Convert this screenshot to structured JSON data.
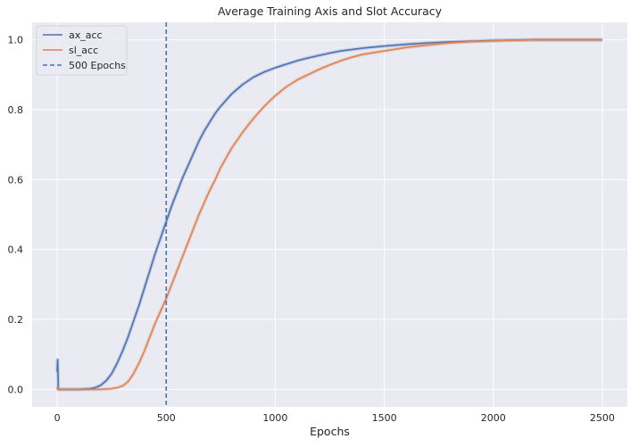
{
  "chart_data": {
    "type": "line",
    "title": "Average Training Axis and Slot Accuracy",
    "xlabel": "Epochs",
    "ylabel": "",
    "xlim": [
      -115,
      2615
    ],
    "ylim": [
      -0.05,
      1.05
    ],
    "xticks": [
      0,
      500,
      1000,
      1500,
      2000,
      2500
    ],
    "yticks": [
      0.0,
      0.2,
      0.4,
      0.6,
      0.8,
      1.0
    ],
    "xtick_labels": [
      "0",
      "500",
      "1000",
      "1500",
      "2000",
      "2500"
    ],
    "ytick_labels": [
      "0.0",
      "0.2",
      "0.4",
      "0.6",
      "0.8",
      "1.0"
    ],
    "grid": true,
    "legend_position": "top-left",
    "background": "#eaeaf2",
    "series": [
      {
        "name": "ax_acc",
        "color": "#4c72b0",
        "x": [
          0,
          2,
          5,
          25,
          100,
          150,
          175,
          200,
          225,
          250,
          275,
          300,
          325,
          350,
          375,
          400,
          425,
          450,
          475,
          500,
          525,
          550,
          575,
          600,
          625,
          650,
          675,
          700,
          725,
          750,
          800,
          850,
          900,
          950,
          1000,
          1050,
          1100,
          1150,
          1200,
          1250,
          1300,
          1350,
          1400,
          1450,
          1500,
          1600,
          1700,
          1800,
          1900,
          2000,
          2100,
          2200,
          2300,
          2400,
          2500
        ],
        "y": [
          0.05,
          0.085,
          0.0,
          0.0,
          0.0,
          0.002,
          0.005,
          0.012,
          0.025,
          0.045,
          0.075,
          0.11,
          0.15,
          0.195,
          0.24,
          0.29,
          0.34,
          0.39,
          0.435,
          0.48,
          0.525,
          0.565,
          0.605,
          0.64,
          0.675,
          0.71,
          0.74,
          0.765,
          0.79,
          0.81,
          0.845,
          0.872,
          0.893,
          0.908,
          0.92,
          0.93,
          0.94,
          0.948,
          0.955,
          0.962,
          0.968,
          0.972,
          0.976,
          0.979,
          0.982,
          0.987,
          0.991,
          0.994,
          0.996,
          0.998,
          0.999,
          1.0,
          1.0,
          1.0,
          1.0
        ]
      },
      {
        "name": "sl_acc",
        "color": "#dd8452",
        "x": [
          0,
          2,
          5,
          25,
          100,
          200,
          250,
          275,
          300,
          325,
          350,
          375,
          400,
          425,
          450,
          475,
          500,
          525,
          550,
          575,
          600,
          625,
          650,
          675,
          700,
          725,
          750,
          800,
          850,
          900,
          950,
          1000,
          1050,
          1100,
          1150,
          1200,
          1250,
          1300,
          1350,
          1400,
          1450,
          1500,
          1600,
          1700,
          1800,
          1900,
          2000,
          2100,
          2200,
          2300,
          2400,
          2500
        ],
        "y": [
          0.0,
          0.005,
          0.0,
          0.0,
          0.0,
          0.0,
          0.002,
          0.005,
          0.01,
          0.022,
          0.045,
          0.075,
          0.11,
          0.15,
          0.19,
          0.225,
          0.26,
          0.3,
          0.34,
          0.38,
          0.42,
          0.46,
          0.5,
          0.535,
          0.57,
          0.6,
          0.635,
          0.69,
          0.735,
          0.775,
          0.81,
          0.84,
          0.865,
          0.885,
          0.9,
          0.915,
          0.928,
          0.94,
          0.95,
          0.958,
          0.963,
          0.968,
          0.978,
          0.985,
          0.991,
          0.995,
          0.997,
          0.999,
          1.0,
          1.0,
          1.0,
          1.0
        ]
      }
    ],
    "vlines": [
      {
        "name": "500 Epochs",
        "x": 500,
        "color": "#4c72b0",
        "style": "dashed"
      }
    ],
    "legend": [
      "ax_acc",
      "sl_acc",
      "500 Epochs"
    ]
  }
}
